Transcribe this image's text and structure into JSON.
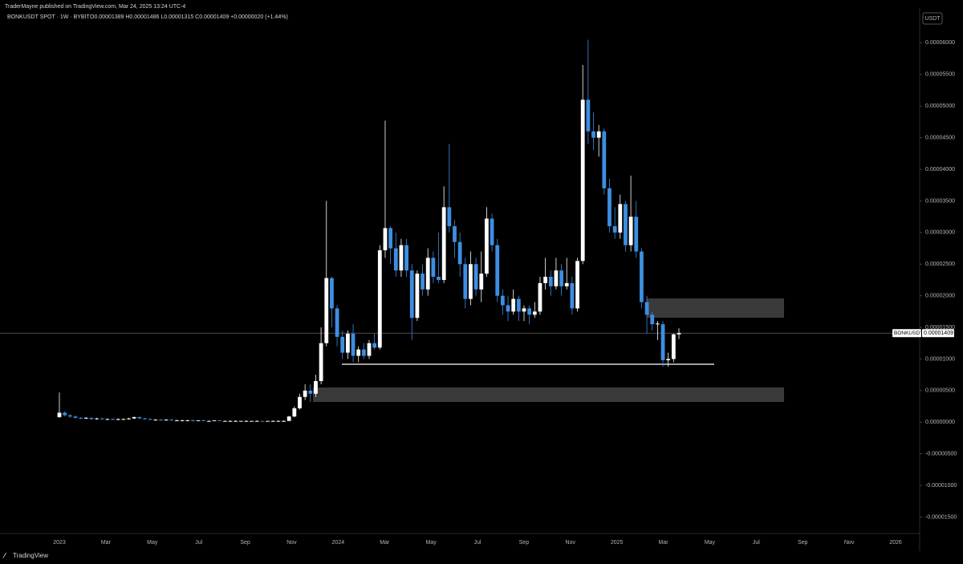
{
  "publisher": "TraderMayne published on TradingView.com, Mar 24, 2025 13:24 UTC-4",
  "brand": "TradingView",
  "chart_data": {
    "type": "candlestick",
    "symbol": "BONKUSDT SPOT · 1W · BYBIT",
    "legend": "O0.00001389 H0.00001486 L0.00001315 C0.00001409 +0.00000020 (+1.44%)",
    "currency": "USDT",
    "price_tag_name": "BONKUSDT",
    "last_price": 1.409e-05,
    "last_price_label": "0.00001409",
    "up_color": "#ffffff",
    "down_color": "#3d8ee0",
    "xticks": [
      "2023",
      "Mar",
      "May",
      "Jul",
      "Sep",
      "Nov",
      "2024",
      "Mar",
      "May",
      "Jul",
      "Sep",
      "Nov",
      "2025",
      "Mar",
      "May",
      "Jul",
      "Sep",
      "Nov",
      "2026"
    ],
    "ylim": [
      -1.9e-05,
      6.5e-05
    ],
    "yticks": [
      {
        "value": 6e-05,
        "label": "0.00006000"
      },
      {
        "value": 5.5e-05,
        "label": "0.00005500"
      },
      {
        "value": 5e-05,
        "label": "0.00005000"
      },
      {
        "value": 4.5e-05,
        "label": "0.00004500"
      },
      {
        "value": 4e-05,
        "label": "0.00004000"
      },
      {
        "value": 3.5e-05,
        "label": "0.00003500"
      },
      {
        "value": 3e-05,
        "label": "0.00003000"
      },
      {
        "value": 2.5e-05,
        "label": "0.00002500"
      },
      {
        "value": 2e-05,
        "label": "0.00002000"
      },
      {
        "value": 1.5e-05,
        "label": "0.00001500"
      },
      {
        "value": 1e-05,
        "label": "0.00001000"
      },
      {
        "value": 5e-06,
        "label": "0.00000500"
      },
      {
        "value": 0,
        "label": "0.00000000"
      },
      {
        "value": -5e-06,
        "label": "-0.00000500"
      },
      {
        "value": -1e-05,
        "label": "-0.00001000"
      },
      {
        "value": -1.5e-05,
        "label": "-0.00001500"
      }
    ],
    "candles": [
      [
        8e-07,
        4.7e-06,
        7e-07,
        1.5e-06
      ],
      [
        1.5e-06,
        1.7e-06,
        9e-07,
        1.1e-06
      ],
      [
        1.1e-06,
        1.2e-06,
        7e-07,
        9e-07
      ],
      [
        9e-07,
        1.1e-06,
        6e-07,
        7e-07
      ],
      [
        7e-07,
        8e-07,
        5e-07,
        6e-07
      ],
      [
        6e-07,
        8e-07,
        5e-07,
        7e-07
      ],
      [
        7e-07,
        7e-07,
        4e-07,
        5e-07
      ],
      [
        5e-07,
        7e-07,
        4e-07,
        6e-07
      ],
      [
        6e-07,
        7e-07,
        4e-07,
        5e-07
      ],
      [
        5e-07,
        6e-07,
        4e-07,
        5e-07
      ],
      [
        5e-07,
        6e-07,
        4e-07,
        4e-07
      ],
      [
        4e-07,
        6e-07,
        3e-07,
        5e-07
      ],
      [
        5e-07,
        6e-07,
        4e-07,
        5e-07
      ],
      [
        5e-07,
        7e-07,
        4e-07,
        6e-07
      ],
      [
        6e-07,
        9e-07,
        5e-07,
        8e-07
      ],
      [
        8e-07,
        9e-07,
        5e-07,
        6e-07
      ],
      [
        6e-07,
        7e-07,
        4e-07,
        5e-07
      ],
      [
        5e-07,
        6e-07,
        4e-07,
        4e-07
      ],
      [
        4e-07,
        5e-07,
        3e-07,
        4e-07
      ],
      [
        4e-07,
        5e-07,
        3e-07,
        3e-07
      ],
      [
        3e-07,
        5e-07,
        3e-07,
        4e-07
      ],
      [
        4e-07,
        5e-07,
        3e-07,
        3e-07
      ],
      [
        3e-07,
        4e-07,
        2e-07,
        3e-07
      ],
      [
        3e-07,
        4e-07,
        2e-07,
        3e-07
      ],
      [
        3e-07,
        4e-07,
        2e-07,
        3e-07
      ],
      [
        3e-07,
        4e-07,
        2e-07,
        2e-07
      ],
      [
        2e-07,
        3e-07,
        2e-07,
        3e-07
      ],
      [
        3e-07,
        4e-07,
        2e-07,
        2e-07
      ],
      [
        2e-07,
        3e-07,
        2e-07,
        2e-07
      ],
      [
        2e-07,
        3e-07,
        2e-07,
        3e-07
      ],
      [
        3e-07,
        3e-07,
        2e-07,
        2e-07
      ],
      [
        2e-07,
        3e-07,
        2e-07,
        2e-07
      ],
      [
        2e-07,
        3e-07,
        1e-07,
        2e-07
      ],
      [
        2e-07,
        3e-07,
        1e-07,
        2e-07
      ],
      [
        2e-07,
        2e-07,
        1e-07,
        2e-07
      ],
      [
        2e-07,
        3e-07,
        1e-07,
        2e-07
      ],
      [
        2e-07,
        2e-07,
        1e-07,
        2e-07
      ],
      [
        2e-07,
        3e-07,
        1e-07,
        2e-07
      ],
      [
        2e-07,
        2e-07,
        1e-07,
        1e-07
      ],
      [
        1e-07,
        2e-07,
        1e-07,
        2e-07
      ],
      [
        2e-07,
        3e-07,
        1e-07,
        2e-07
      ],
      [
        2e-07,
        3e-07,
        1e-07,
        2e-07
      ],
      [
        2e-07,
        3e-07,
        1e-07,
        2e-07
      ],
      [
        2e-07,
        1e-06,
        2e-07,
        9e-07
      ],
      [
        9e-07,
        2.5e-06,
        8e-07,
        2.2e-06
      ],
      [
        2.2e-06,
        4.5e-06,
        2e-06,
        4e-06
      ],
      [
        4e-06,
        6e-06,
        3.5e-06,
        5e-06
      ],
      [
        5e-06,
        6e-06,
        3.2e-06,
        4.5e-06
      ],
      [
        4.5e-06,
        7.5e-06,
        4e-06,
        6.5e-06
      ],
      [
        6.5e-06,
        1.5e-05,
        6e-06,
        1.25e-05
      ],
      [
        1.25e-05,
        3.5e-05,
        1.2e-05,
        2.28e-05
      ],
      [
        2.28e-05,
        2.3e-05,
        1.5e-05,
        1.8e-05
      ],
      [
        1.8e-05,
        1.85e-05,
        1.2e-05,
        1.35e-05
      ],
      [
        1.35e-05,
        1.45e-05,
        1e-05,
        1.1e-05
      ],
      [
        1.1e-05,
        1.45e-05,
        1e-05,
        1.4e-05
      ],
      [
        1.4e-05,
        1.55e-05,
        9.5e-06,
        1.05e-05
      ],
      [
        1.05e-05,
        1.2e-05,
        9.5e-06,
        1.15e-05
      ],
      [
        1.15e-05,
        1.25e-05,
        1e-05,
        1.05e-05
      ],
      [
        1.05e-05,
        1.3e-05,
        1e-05,
        1.25e-05
      ],
      [
        1.25e-05,
        1.4e-05,
        1.15e-05,
        1.18e-05
      ],
      [
        1.18e-05,
        2.8e-05,
        1.15e-05,
        2.72e-05
      ],
      [
        2.72e-05,
        4.77e-05,
        2.6e-05,
        3.07e-05
      ],
      [
        3.07e-05,
        3.1e-05,
        2.5e-05,
        2.75e-05
      ],
      [
        2.75e-05,
        3e-05,
        2.3e-05,
        2.4e-05
      ],
      [
        2.4e-05,
        2.9e-05,
        2.3e-05,
        2.8e-05
      ],
      [
        2.8e-05,
        2.9e-05,
        2.3e-05,
        2.4e-05
      ],
      [
        2.4e-05,
        2.5e-05,
        1.3e-05,
        1.65e-05
      ],
      [
        1.65e-05,
        2.4e-05,
        1.6e-05,
        2.35e-05
      ],
      [
        2.35e-05,
        2.5e-05,
        2e-05,
        2.1e-05
      ],
      [
        2.1e-05,
        2.75e-05,
        2e-05,
        2.6e-05
      ],
      [
        2.6e-05,
        2.7e-05,
        2.2e-05,
        2.3e-05
      ],
      [
        2.3e-05,
        3e-05,
        2.2e-05,
        2.25e-05
      ],
      [
        2.25e-05,
        3.73e-05,
        2.2e-05,
        3.4e-05
      ],
      [
        3.4e-05,
        4.4e-05,
        3e-05,
        3.1e-05
      ],
      [
        3.1e-05,
        3.2e-05,
        2.6e-05,
        2.85e-05
      ],
      [
        2.85e-05,
        3e-05,
        2.3e-05,
        2.5e-05
      ],
      [
        2.5e-05,
        2.6e-05,
        1.8e-05,
        1.95e-05
      ],
      [
        1.95e-05,
        2.7e-05,
        1.85e-05,
        2.5e-05
      ],
      [
        2.5e-05,
        2.6e-05,
        2e-05,
        2.1e-05
      ],
      [
        2.1e-05,
        2.7e-05,
        1.9e-05,
        2.35e-05
      ],
      [
        2.35e-05,
        3.4e-05,
        2.3e-05,
        3.22e-05
      ],
      [
        3.22e-05,
        3.3e-05,
        2.7e-05,
        2.8e-05
      ],
      [
        2.8e-05,
        2.9e-05,
        1.9e-05,
        2e-05
      ],
      [
        2e-05,
        2.1e-05,
        1.7e-05,
        1.85e-05
      ],
      [
        1.85e-05,
        2e-05,
        1.6e-05,
        1.75e-05
      ],
      [
        1.75e-05,
        2.1e-05,
        1.7e-05,
        1.95e-05
      ],
      [
        1.95e-05,
        2e-05,
        1.6e-05,
        1.75e-05
      ],
      [
        1.75e-05,
        1.85e-05,
        1.6e-05,
        1.8e-05
      ],
      [
        1.8e-05,
        1.85e-05,
        1.55e-05,
        1.7e-05
      ],
      [
        1.7e-05,
        1.9e-05,
        1.65e-05,
        1.75e-05
      ],
      [
        1.75e-05,
        2.3e-05,
        1.7e-05,
        2.2e-05
      ],
      [
        2.2e-05,
        2.6e-05,
        2.1e-05,
        2.3e-05
      ],
      [
        2.3e-05,
        2.4e-05,
        2e-05,
        2.15e-05
      ],
      [
        2.15e-05,
        2.6e-05,
        2.1e-05,
        2.4e-05
      ],
      [
        2.4e-05,
        2.5e-05,
        2e-05,
        2.15e-05
      ],
      [
        2.15e-05,
        2.6e-05,
        2.1e-05,
        2.2e-05
      ],
      [
        2.2e-05,
        2.3e-05,
        1.7e-05,
        1.8e-05
      ],
      [
        1.8e-05,
        2.6e-05,
        1.75e-05,
        2.55e-05
      ],
      [
        2.55e-05,
        5.65e-05,
        2.5e-05,
        5.1e-05
      ],
      [
        5.1e-05,
        6.05e-05,
        4.4e-05,
        4.6e-05
      ],
      [
        4.6e-05,
        4.9e-05,
        4.3e-05,
        4.5e-05
      ],
      [
        4.5e-05,
        4.7e-05,
        4.2e-05,
        4.6e-05
      ],
      [
        4.6e-05,
        4.65e-05,
        3.6e-05,
        3.7e-05
      ],
      [
        3.7e-05,
        3.85e-05,
        3e-05,
        3.1e-05
      ],
      [
        3.1e-05,
        3.4e-05,
        2.9e-05,
        3e-05
      ],
      [
        3e-05,
        3.6e-05,
        2.9e-05,
        3.45e-05
      ],
      [
        3.45e-05,
        3.5e-05,
        2.7e-05,
        2.8e-05
      ],
      [
        2.8e-05,
        3.9e-05,
        2.7e-05,
        3.25e-05
      ],
      [
        3.25e-05,
        3.5e-05,
        2.6e-05,
        2.7e-05
      ],
      [
        2.7e-05,
        2.75e-05,
        1.8e-05,
        1.9e-05
      ],
      [
        1.9e-05,
        2e-05,
        1.4e-05,
        1.7e-05
      ],
      [
        1.7e-05,
        1.75e-05,
        1.45e-05,
        1.55e-05
      ],
      [
        1.55e-05,
        1.6e-05,
        1.3e-05,
        1.56e-05
      ],
      [
        1.55e-05,
        1.6e-05,
        8.8e-06,
        9.8e-06
      ],
      [
        9.8e-06,
        1.1e-05,
        8.8e-06,
        1e-05
      ],
      [
        1e-05,
        1.4e-05,
        9.5e-06,
        1.39e-05
      ],
      [
        1.389e-05,
        1.486e-05,
        1.315e-05,
        1.409e-05
      ]
    ]
  }
}
